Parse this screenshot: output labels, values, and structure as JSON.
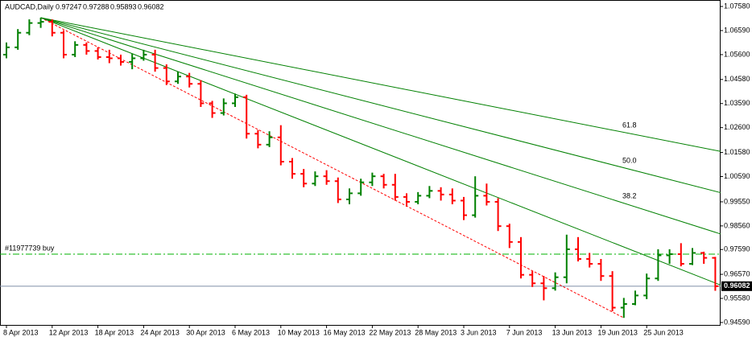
{
  "chart_data": {
    "type": "ohlc",
    "title": "AUDCAD,Daily",
    "categories": [
      "8 Apr 2013",
      null,
      null,
      null,
      "12 Apr 2013",
      null,
      null,
      null,
      "18 Apr 2013",
      null,
      null,
      null,
      "24 Apr 2013",
      null,
      null,
      null,
      "30 Apr 2013",
      null,
      null,
      null,
      "6 May 2013",
      null,
      null,
      null,
      "10 May 2013",
      null,
      null,
      null,
      "16 May 2013",
      null,
      null,
      null,
      "22 May 2013",
      null,
      null,
      null,
      "28 May 2013",
      null,
      null,
      null,
      "3 Jun 2013",
      null,
      null,
      null,
      "7 Jun 2013",
      null,
      null,
      null,
      "13 Jun 2013",
      null,
      null,
      null,
      "19 Jun 2013",
      null,
      null,
      null,
      "25 Jun 2013",
      null,
      null,
      null,
      null,
      null,
      null
    ],
    "open": [
      1.056,
      1.059,
      1.065,
      1.069,
      1.0695,
      1.065,
      1.056,
      1.06,
      1.0575,
      1.055,
      1.0545,
      1.053,
      1.0545,
      1.056,
      1.0505,
      1.045,
      1.047,
      1.044,
      1.036,
      1.032,
      1.036,
      1.0385,
      1.0235,
      1.019,
      1.022,
      1.012,
      1.007,
      1.003,
      1.006,
      1.004,
      0.9965,
      0.999,
      1.0035,
      1.006,
      1.0025,
      0.9975,
      0.9955,
      0.998,
      1.0,
      0.9985,
      0.996,
      0.99,
      0.998,
      0.9955,
      0.9855,
      0.979,
      0.9655,
      0.962,
      0.96,
      0.9645,
      0.976,
      0.972,
      0.97,
      0.965,
      0.952,
      0.9535,
      0.957,
      0.964,
      0.9735,
      0.974,
      0.97,
      0.9745,
      0.97247
    ],
    "high": [
      1.061,
      1.0665,
      1.0705,
      1.0712,
      1.0705,
      1.066,
      1.0615,
      1.061,
      1.059,
      1.058,
      1.056,
      1.0565,
      1.058,
      1.058,
      1.052,
      1.049,
      1.0485,
      1.0455,
      1.037,
      1.038,
      1.04,
      1.0395,
      1.025,
      1.0245,
      1.027,
      1.0135,
      1.009,
      1.008,
      1.0085,
      1.0055,
      1.001,
      1.005,
      1.0075,
      1.007,
      1.007,
      0.999,
      0.9995,
      1.002,
      1.0015,
      1.001,
      0.9975,
      1.006,
      1.003,
      0.997,
      0.9865,
      0.981,
      0.967,
      0.965,
      0.9665,
      0.982,
      0.981,
      0.9745,
      0.972,
      0.967,
      0.956,
      0.959,
      0.966,
      0.976,
      0.976,
      0.9785,
      0.9765,
      0.975,
      0.97288
    ],
    "low": [
      1.0545,
      1.058,
      1.064,
      1.067,
      1.0635,
      1.0545,
      1.055,
      1.056,
      1.054,
      1.0525,
      1.0515,
      1.05,
      1.0535,
      1.049,
      1.0435,
      1.044,
      1.0425,
      1.0345,
      1.03,
      1.031,
      1.0345,
      1.0215,
      1.0175,
      1.018,
      1.0105,
      1.005,
      1.0015,
      1.002,
      1.0025,
      0.995,
      0.9945,
      0.998,
      1.002,
      1.001,
      0.996,
      0.9935,
      0.9945,
      0.997,
      0.996,
      0.9945,
      0.988,
      0.989,
      0.994,
      0.9835,
      0.9765,
      0.964,
      0.9605,
      0.955,
      0.959,
      0.962,
      0.971,
      0.9685,
      0.963,
      0.9505,
      0.9478,
      0.953,
      0.9555,
      0.963,
      0.97,
      0.969,
      0.9695,
      0.97,
      0.95893
    ],
    "close": [
      1.059,
      1.065,
      1.069,
      1.0695,
      1.065,
      1.056,
      1.06,
      1.0575,
      1.055,
      1.0545,
      1.053,
      1.0545,
      1.056,
      1.0505,
      1.045,
      1.047,
      1.044,
      1.036,
      1.032,
      1.036,
      1.0385,
      1.0235,
      1.019,
      1.022,
      1.012,
      1.007,
      1.003,
      1.006,
      1.004,
      0.9965,
      0.999,
      1.0035,
      1.006,
      1.0025,
      0.9975,
      0.9955,
      0.998,
      1.0,
      0.9985,
      0.996,
      0.99,
      0.998,
      0.9955,
      0.9855,
      0.979,
      0.9655,
      0.962,
      0.96,
      0.9645,
      0.976,
      0.972,
      0.97,
      0.965,
      0.952,
      0.9535,
      0.957,
      0.964,
      0.9735,
      0.974,
      0.97,
      0.9745,
      0.97247,
      0.96082
    ],
    "up_color": "#008000",
    "down_color": "#ff0000",
    "ylim": [
      0.9449,
      1.0778
    ],
    "yticks": [
      {
        "value": 1.0758,
        "label": "1.07580"
      },
      {
        "value": 1.0659,
        "label": "1.06590"
      },
      {
        "value": 1.056,
        "label": "1.05600"
      },
      {
        "value": 1.0458,
        "label": "1.04580"
      },
      {
        "value": 1.0359,
        "label": "1.03590"
      },
      {
        "value": 1.026,
        "label": "1.02600"
      },
      {
        "value": 1.0158,
        "label": "1.01580"
      },
      {
        "value": 1.0059,
        "label": "1.00590"
      },
      {
        "value": 0.9955,
        "label": "0.99550"
      },
      {
        "value": 0.9856,
        "label": "0.98560"
      },
      {
        "value": 0.9759,
        "label": "0.97590"
      },
      {
        "value": 0.9657,
        "label": "0.96570"
      },
      {
        "value": 0.9558,
        "label": "0.95580"
      },
      {
        "value": 0.9459,
        "label": "0.94590"
      }
    ],
    "fan_start": 3,
    "fan_end": 54,
    "fan_levels": [
      61.8,
      50,
      38.2,
      23.6
    ],
    "fan_level_labels": [
      "61.8",
      "50.0",
      "38.2",
      null
    ],
    "fan_color": "#008000",
    "fan_base_color": "#ff0000",
    "order": {
      "label": "#11977739 buy",
      "price": 0.974,
      "color": "#00b000"
    }
  }
}
